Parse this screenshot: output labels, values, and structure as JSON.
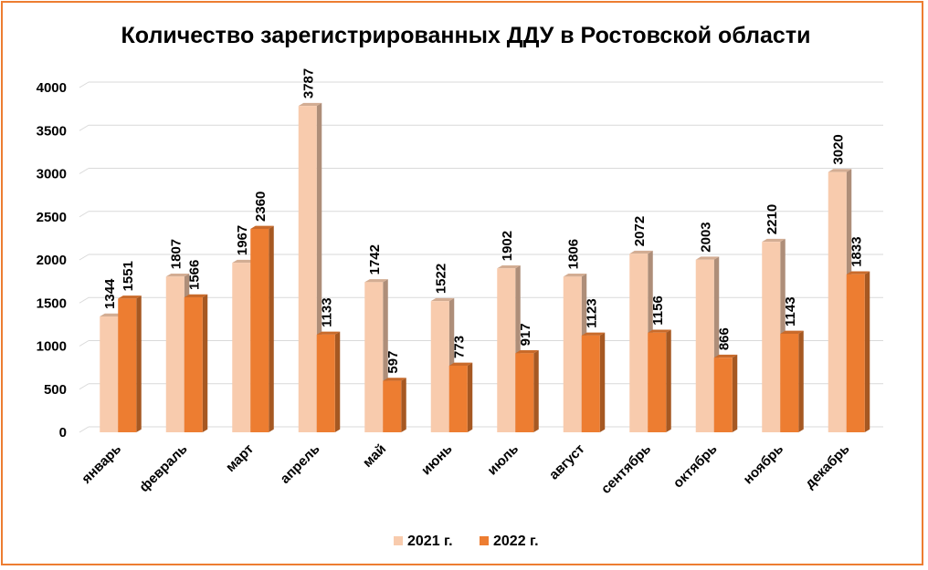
{
  "chart_data": {
    "type": "bar",
    "title": "Количество зарегистрированных ДДУ в Ростовской области",
    "categories": [
      "январь",
      "февраль",
      "март",
      "апрель",
      "май",
      "июнь",
      "июль",
      "август",
      "сентябрь",
      "октябрь",
      "ноябрь",
      "декабрь"
    ],
    "series": [
      {
        "name": "2021 г.",
        "color": "#F8CBAD",
        "values": [
          1344,
          1807,
          1967,
          3787,
          1742,
          1522,
          1902,
          1806,
          2072,
          2003,
          2210,
          3020
        ]
      },
      {
        "name": "2022 г.",
        "color": "#ED7D31",
        "values": [
          1551,
          1566,
          2360,
          1133,
          597,
          773,
          917,
          1123,
          1156,
          866,
          1143,
          1833
        ]
      }
    ],
    "yticks": [
      0,
      500,
      1000,
      1500,
      2000,
      2500,
      3000,
      3500,
      4000
    ],
    "ylim": [
      0,
      4000
    ],
    "grid": true,
    "legend": "bottom",
    "border_color": "#ED7D31"
  }
}
